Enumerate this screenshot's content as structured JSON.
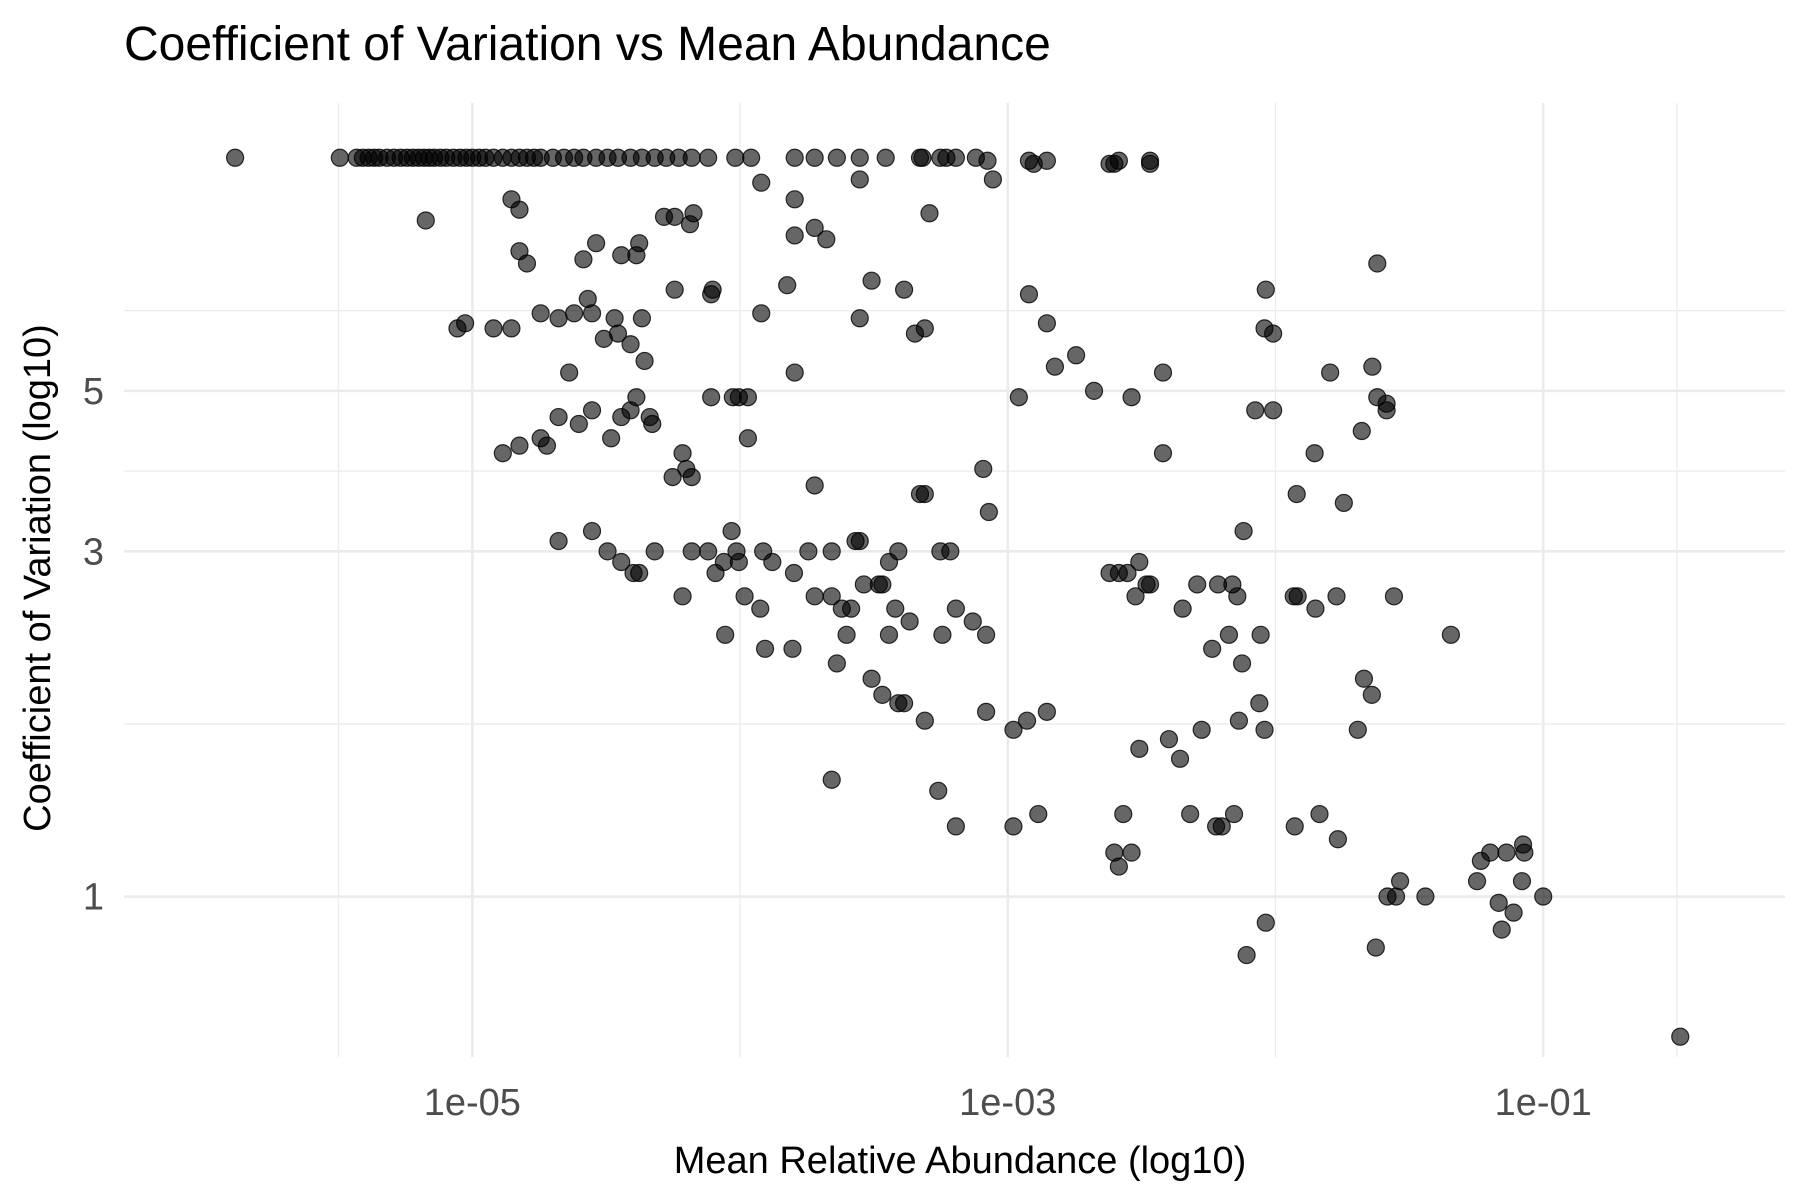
{
  "chart_data": {
    "type": "scatter",
    "title": "Coefficient of Variation vs Mean Abundance",
    "xlabel": "Mean Relative Abundance (log10)",
    "ylabel": "Coefficient of Variation (log10)",
    "x_scale": "log10",
    "y_scale": "log10",
    "xlim": [
      5e-07,
      0.8
    ],
    "ylim": [
      0.6,
      12.5
    ],
    "x_ticks": [
      {
        "value": 1e-05,
        "label": "1e-05"
      },
      {
        "value": 0.001,
        "label": "1e-03"
      },
      {
        "value": 0.1,
        "label": "1e-01"
      }
    ],
    "y_ticks": [
      {
        "value": 1,
        "label": "1"
      },
      {
        "value": 3,
        "label": "3"
      },
      {
        "value": 5,
        "label": "5"
      }
    ],
    "grid": true,
    "legend": "none",
    "points": [
      [
        1.3e-06,
        10.5
      ],
      [
        3.2e-06,
        10.5
      ],
      [
        3.7e-06,
        10.5
      ],
      [
        3.9e-06,
        10.5
      ],
      [
        4.1e-06,
        10.5
      ],
      [
        4.3e-06,
        10.5
      ],
      [
        4.5e-06,
        10.5
      ],
      [
        4.8e-06,
        10.5
      ],
      [
        5.1e-06,
        10.5
      ],
      [
        5.4e-06,
        10.5
      ],
      [
        5.7e-06,
        10.5
      ],
      [
        6e-06,
        10.5
      ],
      [
        6.3e-06,
        10.5
      ],
      [
        6.6e-06,
        10.5
      ],
      [
        6.9e-06,
        10.5
      ],
      [
        7.2e-06,
        10.5
      ],
      [
        7.6e-06,
        10.5
      ],
      [
        8e-06,
        10.5
      ],
      [
        8.5e-06,
        10.5
      ],
      [
        9e-06,
        10.5
      ],
      [
        9.5e-06,
        10.5
      ],
      [
        1e-05,
        10.5
      ],
      [
        1.06e-05,
        10.5
      ],
      [
        1.12e-05,
        10.5
      ],
      [
        1.2e-05,
        10.5
      ],
      [
        1.3e-05,
        10.5
      ],
      [
        1.4e-05,
        10.5
      ],
      [
        1.5e-05,
        10.5
      ],
      [
        1.6e-05,
        10.5
      ],
      [
        1.7e-05,
        10.5
      ],
      [
        1.8e-05,
        10.5
      ],
      [
        2e-05,
        10.5
      ],
      [
        2.2e-05,
        10.5
      ],
      [
        2.4e-05,
        10.5
      ],
      [
        2.6e-05,
        10.5
      ],
      [
        2.9e-05,
        10.5
      ],
      [
        3.2e-05,
        10.5
      ],
      [
        3.5e-05,
        10.5
      ],
      [
        3.9e-05,
        10.5
      ],
      [
        4.3e-05,
        10.5
      ],
      [
        4.8e-05,
        10.5
      ],
      [
        5.3e-05,
        10.5
      ],
      [
        5.9e-05,
        10.5
      ],
      [
        6.6e-05,
        10.5
      ],
      [
        7.6e-05,
        10.5
      ],
      [
        9.6e-05,
        10.5
      ],
      [
        0.00011,
        10.5
      ],
      [
        0.00016,
        10.5
      ],
      [
        0.00019,
        10.5
      ],
      [
        0.00023,
        10.5
      ],
      [
        0.00028,
        10.5
      ],
      [
        0.00035,
        10.5
      ],
      [
        0.00047,
        10.5
      ],
      [
        0.00048,
        10.5
      ],
      [
        0.00056,
        10.5
      ],
      [
        0.00059,
        10.5
      ],
      [
        0.00064,
        10.5
      ],
      [
        0.00076,
        10.5
      ],
      [
        0.00084,
        10.4
      ],
      [
        0.0012,
        10.4
      ],
      [
        0.00125,
        10.3
      ],
      [
        0.0014,
        10.4
      ],
      [
        0.0024,
        10.3
      ],
      [
        0.0025,
        10.3
      ],
      [
        0.0026,
        10.4
      ],
      [
        0.0034,
        10.4
      ],
      [
        6.7e-06,
        8.6
      ],
      [
        1.4e-05,
        9.2
      ],
      [
        1.5e-05,
        8.9
      ],
      [
        1.5e-05,
        7.8
      ],
      [
        1.6e-05,
        7.5
      ],
      [
        2.6e-05,
        7.6
      ],
      [
        2.9e-05,
        8.0
      ],
      [
        3.6e-05,
        7.7
      ],
      [
        4.1e-05,
        7.7
      ],
      [
        4.2e-05,
        8.0
      ],
      [
        5.2e-05,
        8.7
      ],
      [
        5.7e-05,
        8.7
      ],
      [
        6.5e-05,
        8.5
      ],
      [
        6.7e-05,
        8.8
      ],
      [
        0.00012,
        9.7
      ],
      [
        0.00016,
        9.2
      ],
      [
        0.00016,
        8.2
      ],
      [
        0.00019,
        8.4
      ],
      [
        0.00021,
        8.1
      ],
      [
        0.00028,
        9.8
      ],
      [
        0.00051,
        8.8
      ],
      [
        0.00088,
        9.8
      ],
      [
        0.0034,
        10.3
      ],
      [
        0.024,
        7.5
      ],
      [
        8.8e-06,
        6.1
      ],
      [
        9.4e-06,
        6.2
      ],
      [
        1.2e-05,
        6.1
      ],
      [
        1.4e-05,
        6.1
      ],
      [
        1.8e-05,
        6.4
      ],
      [
        2.1e-05,
        6.3
      ],
      [
        2.3e-05,
        5.3
      ],
      [
        2.4e-05,
        6.4
      ],
      [
        2.7e-05,
        6.7
      ],
      [
        2.8e-05,
        6.4
      ],
      [
        3.1e-05,
        5.9
      ],
      [
        3.4e-05,
        6.3
      ],
      [
        3.5e-05,
        6.0
      ],
      [
        3.9e-05,
        5.8
      ],
      [
        4.3e-05,
        6.3
      ],
      [
        4.4e-05,
        5.5
      ],
      [
        5.7e-05,
        6.9
      ],
      [
        7.8e-05,
        6.8
      ],
      [
        7.9e-05,
        6.9
      ],
      [
        0.00012,
        6.4
      ],
      [
        0.00015,
        7.0
      ],
      [
        0.00016,
        5.3
      ],
      [
        0.00028,
        6.3
      ],
      [
        0.00031,
        7.1
      ],
      [
        0.00041,
        6.9
      ],
      [
        0.00045,
        6.0
      ],
      [
        0.00049,
        6.1
      ],
      [
        0.0012,
        6.8
      ],
      [
        0.0014,
        6.2
      ],
      [
        0.0015,
        5.4
      ],
      [
        0.0018,
        5.6
      ],
      [
        0.0091,
        6.1
      ],
      [
        0.0092,
        6.9
      ],
      [
        0.0098,
        6.0
      ],
      [
        0.0011,
        4.9
      ],
      [
        0.0021,
        5.0
      ],
      [
        0.0029,
        4.9
      ],
      [
        0.0038,
        5.3
      ],
      [
        0.0084,
        4.7
      ],
      [
        0.0098,
        4.7
      ],
      [
        0.014,
        4.1
      ],
      [
        0.016,
        5.3
      ],
      [
        0.023,
        5.4
      ],
      [
        0.024,
        4.9
      ],
      [
        0.026,
        4.7
      ],
      [
        0.026,
        4.8
      ],
      [
        1.3e-05,
        4.1
      ],
      [
        1.5e-05,
        4.2
      ],
      [
        1.8e-05,
        4.3
      ],
      [
        1.9e-05,
        4.2
      ],
      [
        2.1e-05,
        4.6
      ],
      [
        2.5e-05,
        4.5
      ],
      [
        2.8e-05,
        4.7
      ],
      [
        3.3e-05,
        4.3
      ],
      [
        3.6e-05,
        4.6
      ],
      [
        3.9e-05,
        4.7
      ],
      [
        4.1e-05,
        4.9
      ],
      [
        4.6e-05,
        4.6
      ],
      [
        4.7e-05,
        4.5
      ],
      [
        5.6e-05,
        3.8
      ],
      [
        6.1e-05,
        4.1
      ],
      [
        6.3e-05,
        3.9
      ],
      [
        6.6e-05,
        3.8
      ],
      [
        7.8e-05,
        4.9
      ],
      [
        9.4e-05,
        4.9
      ],
      [
        9.9e-05,
        4.9
      ],
      [
        0.000107,
        4.9
      ],
      [
        0.000107,
        4.3
      ],
      [
        0.00019,
        3.7
      ],
      [
        0.00047,
        3.6
      ],
      [
        0.00049,
        3.6
      ],
      [
        0.00081,
        3.9
      ],
      [
        0.00085,
        3.4
      ],
      [
        0.0038,
        4.1
      ],
      [
        0.0076,
        3.2
      ],
      [
        0.012,
        3.6
      ],
      [
        0.018,
        3.5
      ],
      [
        0.021,
        4.4
      ],
      [
        2.1e-05,
        3.1
      ],
      [
        2.8e-05,
        3.2
      ],
      [
        3.2e-05,
        3.0
      ],
      [
        3.6e-05,
        2.9
      ],
      [
        4e-05,
        2.8
      ],
      [
        4.2e-05,
        2.8
      ],
      [
        4.8e-05,
        3.0
      ],
      [
        6.6e-05,
        3.0
      ],
      [
        7.6e-05,
        3.0
      ],
      [
        9.3e-05,
        3.2
      ],
      [
        9.7e-05,
        3.0
      ],
      [
        0.000122,
        3.0
      ],
      [
        0.000132,
        2.9
      ],
      [
        0.00018,
        3.0
      ],
      [
        0.00022,
        3.0
      ],
      [
        0.00027,
        3.1
      ],
      [
        0.00028,
        3.1
      ],
      [
        0.00036,
        2.9
      ],
      [
        0.00039,
        3.0
      ],
      [
        0.00056,
        3.0
      ],
      [
        0.00061,
        3.0
      ],
      [
        0.0024,
        2.8
      ],
      [
        0.0026,
        2.8
      ],
      [
        0.0028,
        2.8
      ],
      [
        0.0031,
        2.9
      ],
      [
        0.0034,
        2.7
      ],
      [
        0.0051,
        2.7
      ],
      [
        0.0061,
        2.7
      ],
      [
        0.0069,
        2.7
      ],
      [
        0.0072,
        2.6
      ],
      [
        0.0117,
        2.6
      ],
      [
        0.0121,
        2.6
      ],
      [
        0.0169,
        2.6
      ],
      [
        0.0277,
        2.6
      ],
      [
        0.0452,
        2.3
      ],
      [
        6.1e-05,
        2.6
      ],
      [
        8.1e-05,
        2.8
      ],
      [
        8.7e-05,
        2.9
      ],
      [
        9.9e-05,
        2.9
      ],
      [
        0.000104,
        2.6
      ],
      [
        0.000119,
        2.5
      ],
      [
        0.000159,
        2.8
      ],
      [
        0.00019,
        2.6
      ],
      [
        0.00022,
        2.6
      ],
      [
        0.00024,
        2.5
      ],
      [
        0.00025,
        2.3
      ],
      [
        0.00026,
        2.5
      ],
      [
        0.00029,
        2.7
      ],
      [
        0.00033,
        2.7
      ],
      [
        0.00034,
        2.7
      ],
      [
        0.00036,
        2.3
      ],
      [
        0.00038,
        2.5
      ],
      [
        0.00043,
        2.4
      ],
      [
        0.00057,
        2.3
      ],
      [
        0.00064,
        2.5
      ],
      [
        0.00074,
        2.4
      ],
      [
        0.00083,
        2.3
      ],
      [
        0.003,
        2.6
      ],
      [
        0.0033,
        2.7
      ],
      [
        0.0045,
        2.5
      ],
      [
        0.0058,
        2.2
      ],
      [
        0.0067,
        2.3
      ],
      [
        0.0075,
        2.1
      ],
      [
        0.0088,
        2.3
      ],
      [
        0.0141,
        2.5
      ],
      [
        8.8e-05,
        2.3
      ],
      [
        0.000124,
        2.2
      ],
      [
        0.000157,
        2.2
      ],
      [
        0.00023,
        2.1
      ],
      [
        0.00031,
        2.0
      ],
      [
        0.00034,
        1.9
      ],
      [
        0.00039,
        1.85
      ],
      [
        0.00041,
        1.85
      ],
      [
        0.00049,
        1.75
      ],
      [
        0.00083,
        1.8
      ],
      [
        0.00105,
        1.7
      ],
      [
        0.00118,
        1.75
      ],
      [
        0.0014,
        1.8
      ],
      [
        0.0031,
        1.6
      ],
      [
        0.004,
        1.65
      ],
      [
        0.0044,
        1.55
      ],
      [
        0.0053,
        1.7
      ],
      [
        0.0073,
        1.75
      ],
      [
        0.0087,
        1.85
      ],
      [
        0.0091,
        1.7
      ],
      [
        0.0203,
        1.7
      ],
      [
        0.0214,
        2.0
      ],
      [
        0.0229,
        1.9
      ],
      [
        0.00022,
        1.45
      ],
      [
        0.00055,
        1.4
      ],
      [
        0.00064,
        1.25
      ],
      [
        0.00105,
        1.25
      ],
      [
        0.0013,
        1.3
      ],
      [
        0.0025,
        1.15
      ],
      [
        0.0026,
        1.1
      ],
      [
        0.0027,
        1.3
      ],
      [
        0.0029,
        1.15
      ],
      [
        0.0048,
        1.3
      ],
      [
        0.006,
        1.25
      ],
      [
        0.0063,
        1.25
      ],
      [
        0.007,
        1.3
      ],
      [
        0.0118,
        1.25
      ],
      [
        0.0146,
        1.3
      ],
      [
        0.0171,
        1.2
      ],
      [
        0.0237,
        0.85
      ],
      [
        0.0262,
        1.0
      ],
      [
        0.0292,
        1.05
      ],
      [
        0.0363,
        1.0
      ],
      [
        0.0566,
        1.05
      ],
      [
        0.0634,
        1.15
      ],
      [
        0.07,
        0.9
      ],
      [
        0.0775,
        0.95
      ],
      [
        0.0833,
        1.05
      ],
      [
        0.085,
        1.15
      ],
      [
        0.1,
        1.0
      ],
      [
        0.0078,
        0.83
      ],
      [
        0.0092,
        0.92
      ],
      [
        0.0282,
        1.0
      ],
      [
        0.0585,
        1.12
      ],
      [
        0.0682,
        0.98
      ],
      [
        0.0729,
        1.15
      ],
      [
        0.0841,
        1.18
      ],
      [
        0.325,
        0.64
      ]
    ]
  }
}
